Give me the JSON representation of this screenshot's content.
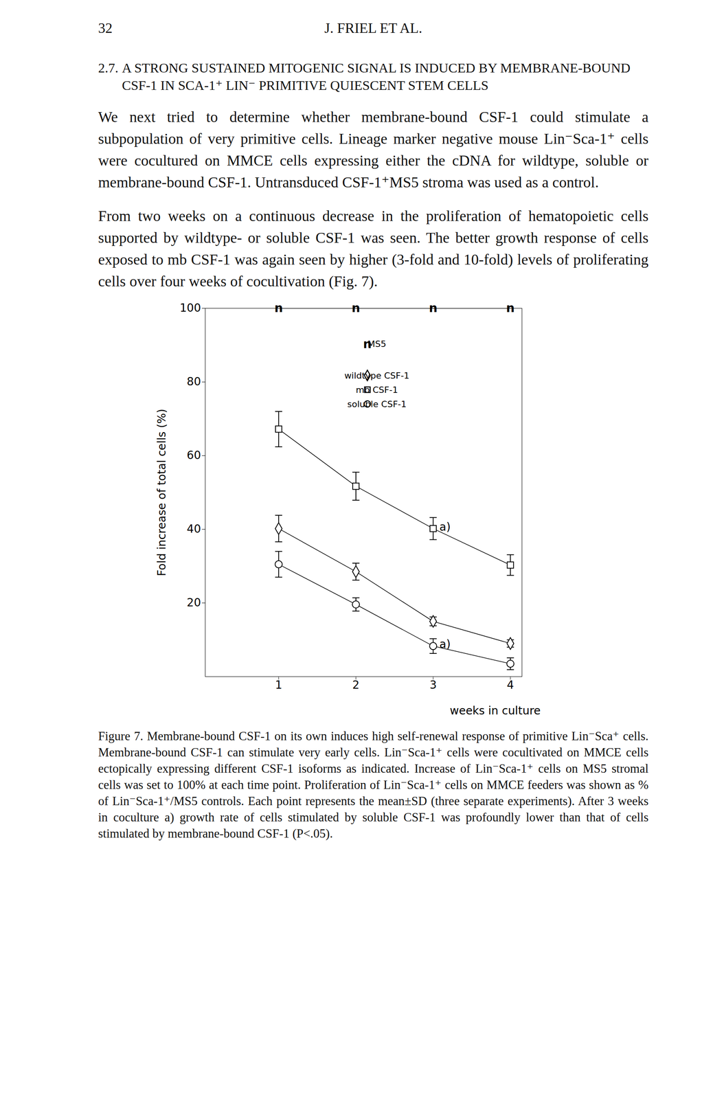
{
  "header": {
    "page": "32",
    "running_title": "J. FRIEL ET AL."
  },
  "section": {
    "number": "2.7.",
    "title": "A STRONG SUSTAINED MITOGENIC SIGNAL IS INDUCED BY MEMBRANE-BOUND CSF-1 IN SCA-1⁺ LIN⁻ PRIMITIVE QUIESCENT STEM CELLS"
  },
  "paragraphs": [
    "We next tried to determine whether membrane-bound CSF-1 could stimulate a subpopulation of very primitive cells. Lineage marker negative mouse Lin⁻Sca-1⁺ cells were cocultured on MMCE cells expressing either the cDNA for wildtype, soluble or membrane-bound CSF-1. Untransduced CSF-1⁺MS5 stroma was used as a control.",
    "From two weeks on a continuous decrease in the proliferation of hematopoietic cells supported by wildtype- or soluble CSF-1 was seen. The better growth response of cells exposed to mb CSF-1 was again seen by higher (3-fold and 10-fold) levels of proliferating cells over four weeks of cocultivation (Fig. 7)."
  ],
  "chart_data": {
    "type": "line",
    "x_label": "weeks in culture",
    "y_label": "Fold increase of total cells (%)",
    "x": [
      1,
      2,
      3,
      4
    ],
    "xlim": [
      0.05,
      4.15
    ],
    "xticks": [
      1,
      2,
      3,
      4
    ],
    "ylim": [
      0,
      100
    ],
    "yticks": [
      20,
      40,
      60,
      80,
      100
    ],
    "grid": false,
    "legend": "top-right",
    "series": [
      {
        "name": "MS5",
        "color": "#000000",
        "marker": "n",
        "values": [
          100,
          100,
          100,
          100
        ]
      },
      {
        "name": "wildtype CSF-1",
        "color": "#000000",
        "marker": "diamond",
        "values": [
          40.2,
          28.5,
          15,
          9
        ],
        "errors": [
          3.6,
          2.3,
          1.2,
          1
        ]
      },
      {
        "name": "mb CSF-1",
        "color": "#000000",
        "marker": "square",
        "values": [
          67.2,
          51.7,
          40.2,
          30.3
        ],
        "errors": [
          4.8,
          3.8,
          3,
          2.8
        ]
      },
      {
        "name": "soluble CSF-1",
        "color": "#000000",
        "marker": "circle",
        "values": [
          30.5,
          19.6,
          8.3,
          3.5
        ],
        "errors": [
          3.5,
          1.8,
          2,
          1.6
        ]
      }
    ],
    "annotations": [
      {
        "text": "a)",
        "series": "mb CSF-1",
        "x": 3
      },
      {
        "text": "a)",
        "series": "soluble CSF-1",
        "x": 3
      }
    ]
  },
  "caption": "Figure 7. Membrane-bound CSF-1 on its own induces high self-renewal response of primitive Lin⁻Sca⁺ cells. Membrane-bound CSF-1 can stimulate very early cells. Lin⁻Sca-1⁺ cells were cocultivated on MMCE cells ectopically expressing different CSF-1 isoforms as indicated. Increase of Lin⁻Sca-1⁺ cells on MS5 stromal cells was set to 100% at each time point. Proliferation of Lin⁻Sca-1⁺ cells on MMCE feeders was shown as % of Lin⁻Sca-1⁺/MS5 controls. Each point represents the mean±SD (three separate experiments). After 3 weeks in coculture a) growth rate of cells stimulated by soluble CSF-1 was profoundly lower than that of cells stimulated by membrane-bound CSF-1 (P<.05)."
}
